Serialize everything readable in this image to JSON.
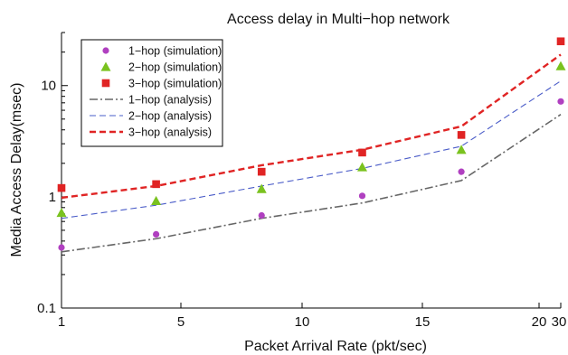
{
  "chart_data": {
    "type": "scatter",
    "title": "Access delay in Multi−hop network",
    "xlabel": "Packet Arrival Rate (pkt/sec)",
    "ylabel": "Media Access Delay(msec)",
    "y_scale": "log",
    "ylim": [
      0.1,
      30
    ],
    "xlim": [
      1,
      30
    ],
    "x_ticks": [
      1,
      5,
      10,
      15,
      20,
      30
    ],
    "y_ticks": [
      0.1,
      1,
      10
    ],
    "y_tick_labels": [
      "0.1",
      "1",
      "10"
    ],
    "grid": false,
    "legend_position": "top-left",
    "x": [
      1,
      4.17,
      8.33,
      12.5,
      16.67,
      30
    ],
    "series": [
      {
        "name": "1−hop (simulation)",
        "marker": "circle",
        "color": "#b040c0",
        "values": [
          0.35,
          0.46,
          0.68,
          1.02,
          1.68,
          7.2
        ]
      },
      {
        "name": "2−hop (simulation)",
        "marker": "triangle",
        "color": "#7ac21f",
        "values": [
          0.72,
          0.92,
          1.18,
          1.85,
          2.65,
          15.0
        ]
      },
      {
        "name": "3−hop (simulation)",
        "marker": "square",
        "color": "#e02424",
        "values": [
          1.2,
          1.3,
          1.68,
          2.5,
          3.6,
          25.0
        ]
      },
      {
        "name": "1−hop (analysis)",
        "line": "dashdot",
        "color": "#666666",
        "values": [
          0.32,
          0.42,
          0.64,
          0.88,
          1.4,
          5.5
        ]
      },
      {
        "name": "2−hop (analysis)",
        "line": "dashed-thin",
        "color": "#4a5cc8",
        "values": [
          0.64,
          0.84,
          1.25,
          1.8,
          2.85,
          11.0
        ]
      },
      {
        "name": "3−hop (analysis)",
        "line": "dashed-thick",
        "color": "#e02424",
        "values": [
          0.98,
          1.25,
          1.92,
          2.65,
          4.3,
          19.0
        ]
      }
    ]
  }
}
